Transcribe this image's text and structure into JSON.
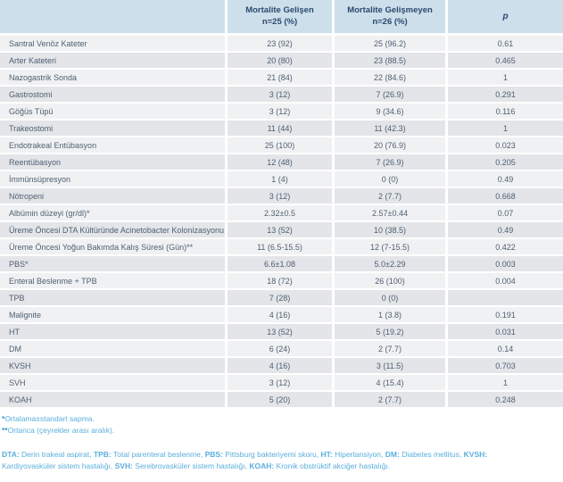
{
  "table": {
    "header": {
      "label_col": "",
      "group1_title": "Mortalite Gelişen",
      "group1_sub": "n=25 (%)",
      "group2_title": "Mortalite Gelişmeyen",
      "group2_sub": "n=26 (%)",
      "p_col": "p"
    },
    "rows": [
      {
        "label": "Santral Venöz Kateter",
        "gelisen": "23 (92)",
        "gelismeyen": "25 (96.2)",
        "p": "0.61"
      },
      {
        "label": "Arter Kateteri",
        "gelisen": "20 (80)",
        "gelismeyen": "23 (88.5)",
        "p": "0.465"
      },
      {
        "label": "Nazogastrik Sonda",
        "gelisen": "21 (84)",
        "gelismeyen": "22 (84.6)",
        "p": "1"
      },
      {
        "label": "Gastrostomi",
        "gelisen": "3 (12)",
        "gelismeyen": "7 (26.9)",
        "p": "0.291"
      },
      {
        "label": "Göğüs Tüpü",
        "gelisen": "3 (12)",
        "gelismeyen": "9 (34.6)",
        "p": "0.116"
      },
      {
        "label": "Trakeostomi",
        "gelisen": "11 (44)",
        "gelismeyen": "11 (42.3)",
        "p": "1"
      },
      {
        "label": "Endotrakeal Entübasyon",
        "gelisen": "25 (100)",
        "gelismeyen": "20 (76.9)",
        "p": "0.023"
      },
      {
        "label": "Reentübasyon",
        "gelisen": "12 (48)",
        "gelismeyen": "7 (26.9)",
        "p": "0.205"
      },
      {
        "label": "İmmünsüpresyon",
        "gelisen": "1 (4)",
        "gelismeyen": "0 (0)",
        "p": "0.49"
      },
      {
        "label": "Nötropeni",
        "gelisen": "3 (12)",
        "gelismeyen": "2 (7.7)",
        "p": "0.668"
      },
      {
        "label": "Albümin düzeyi (gr/dl)*",
        "gelisen": "2.32±0.5",
        "gelismeyen": "2.57±0.44",
        "p": "0.07"
      },
      {
        "label": "Üreme Öncesi DTA Kültüründe Acinetobacter Kolonizasyonu",
        "gelisen": "13 (52)",
        "gelismeyen": "10 (38.5)",
        "p": "0.49"
      },
      {
        "label": "Üreme Öncesi Yoğun Bakımda Kalış Süresi (Gün)**",
        "gelisen": "11 (6.5-15.5)",
        "gelismeyen": "12 (7-15.5)",
        "p": "0.422"
      },
      {
        "label": "PBS*",
        "gelisen": "6.6±1.08",
        "gelismeyen": "5.0±2.29",
        "p": "0.003"
      },
      {
        "label": "Enteral Beslenme + TPB",
        "gelisen": "18 (72)",
        "gelismeyen": "26 (100)",
        "p": "0.004"
      },
      {
        "label": "TPB",
        "gelisen": "7 (28)",
        "gelismeyen": "0 (0)",
        "p": ""
      },
      {
        "label": "Malignite",
        "gelisen": "4 (16)",
        "gelismeyen": "1 (3.8)",
        "p": "0.191"
      },
      {
        "label": "HT",
        "gelisen": "13 (52)",
        "gelismeyen": "5 (19.2)",
        "p": "0.031"
      },
      {
        "label": "DM",
        "gelisen": "6 (24)",
        "gelismeyen": "2 (7.7)",
        "p": "0.14"
      },
      {
        "label": "KVSH",
        "gelisen": "4 (16)",
        "gelismeyen": "3 (11.5)",
        "p": "0.703"
      },
      {
        "label": "SVH",
        "gelisen": "3 (12)",
        "gelismeyen": "4 (15.4)",
        "p": "1"
      },
      {
        "label": "KOAH",
        "gelisen": "5 (20)",
        "gelismeyen": "2 (7.7)",
        "p": "0.248"
      }
    ]
  },
  "footnotes": {
    "note1": {
      "marker": "*",
      "text": "Ortalama±standart sapma."
    },
    "note2": {
      "marker": "**",
      "text": "Ortanca (çeyrekler arası aralık)."
    },
    "abbreviations": [
      {
        "term": "DTA:",
        "definition": "Derin trakeal aspirat",
        "sep": ", "
      },
      {
        "term": "TPB:",
        "definition": "Total parenteral beslenme",
        "sep": ", "
      },
      {
        "term": "PBS:",
        "definition": "Pittsburg bakteriyemi skoru",
        "sep": ", "
      },
      {
        "term": "HT:",
        "definition": "Hipertansiyon",
        "sep": ", "
      },
      {
        "term": "DM:",
        "definition": "Diabetes mellitus",
        "sep": ", "
      },
      {
        "term": "KVSH:",
        "definition": "Kardiyovasküler sistem hastalığı",
        "sep": ", "
      },
      {
        "term": "SVH:",
        "definition": "Serebrovasküler sistem hastalığı",
        "sep": ", "
      },
      {
        "term": "KOAH:",
        "definition": "Kronik obstrüktif akciğer hastalığı",
        "sep": "."
      }
    ]
  },
  "colors": {
    "header_bg": "#cddfeb",
    "header_text": "#2c4a6e",
    "row_odd_bg": "#f0f1f2",
    "row_even_bg": "#e3e5e8",
    "cell_text": "#4e5f73",
    "footnote_text": "#5aaedd",
    "footnote_bold": "#2f9cd6"
  }
}
